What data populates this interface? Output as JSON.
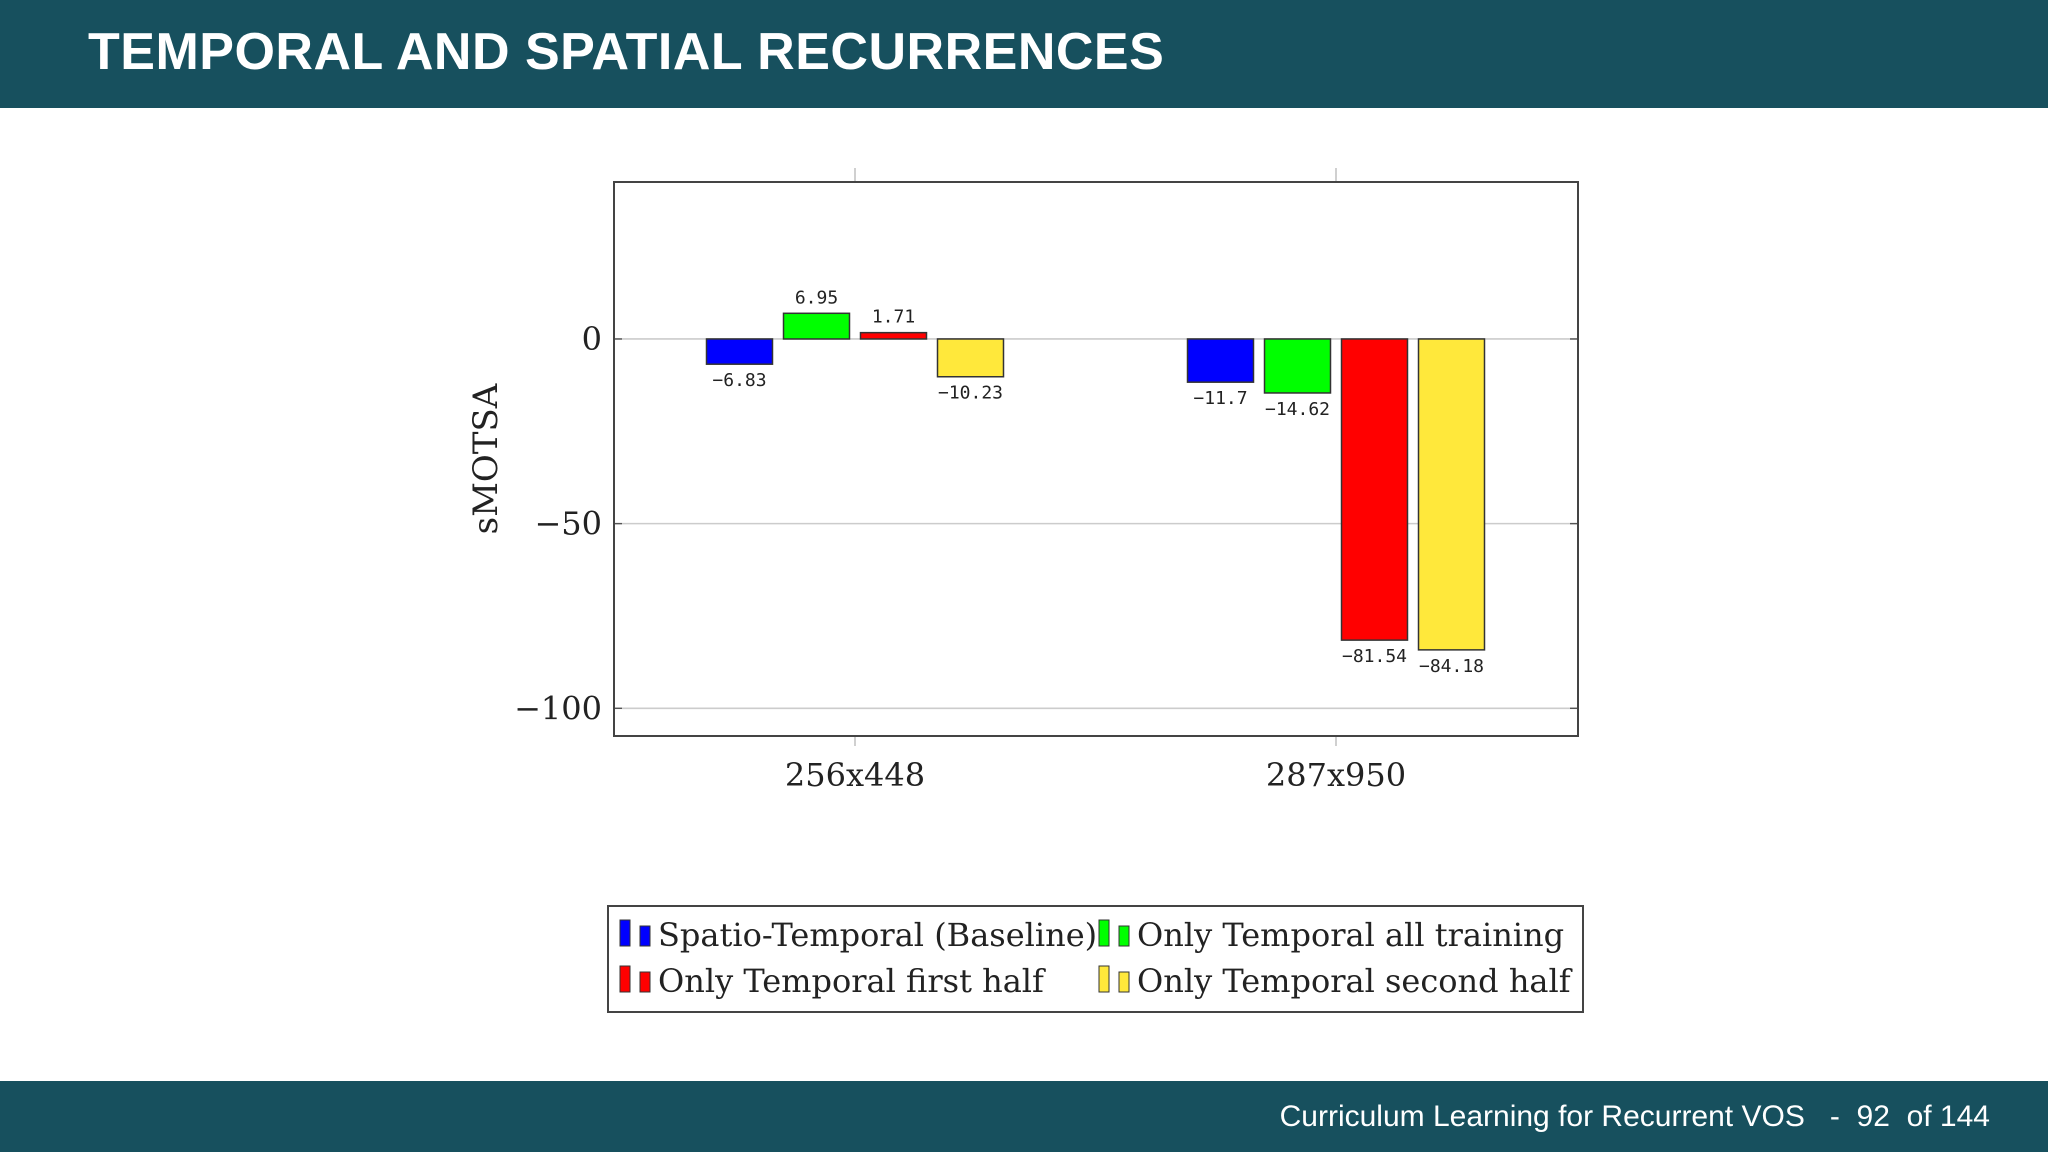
{
  "slide": {
    "title": "TEMPORAL AND SPATIAL RECURRENCES",
    "footer_left": "Curriculum Learning for Recurrent VOS",
    "separator": "-",
    "page_number": "92",
    "page_total": "of 144"
  },
  "colors": {
    "header_bg": "#17505e",
    "blue": "#0000ff",
    "green": "#00ff00",
    "red": "#ff0000",
    "yellow": "#ffe83b"
  },
  "chart_data": {
    "type": "bar",
    "title": "",
    "xlabel": "",
    "ylabel": "sMOTSA",
    "categories": [
      "256x448",
      "287x950"
    ],
    "ylim": [
      -107.5,
      42.5
    ],
    "yticks": [
      0,
      -50,
      -100
    ],
    "ytick_labels": [
      "0",
      "−50",
      "−100"
    ],
    "grid": true,
    "legend_position": "bottom",
    "series": [
      {
        "name": "Spatio-Temporal (Baseline)",
        "color": "#0000ff",
        "values": [
          -6.83,
          -11.7
        ],
        "labels": [
          "−6.83",
          "−11.7"
        ]
      },
      {
        "name": "Only Temporal all training",
        "color": "#00ff00",
        "values": [
          6.95,
          -14.62
        ],
        "labels": [
          "6.95",
          "−14.62"
        ]
      },
      {
        "name": "Only Temporal first half",
        "color": "#ff0000",
        "values": [
          1.71,
          -81.54
        ],
        "labels": [
          "1.71",
          "−81.54"
        ]
      },
      {
        "name": "Only Temporal second half",
        "color": "#ffe83b",
        "values": [
          -10.23,
          -84.18
        ],
        "labels": [
          "−10.23",
          "−84.18"
        ]
      }
    ]
  }
}
